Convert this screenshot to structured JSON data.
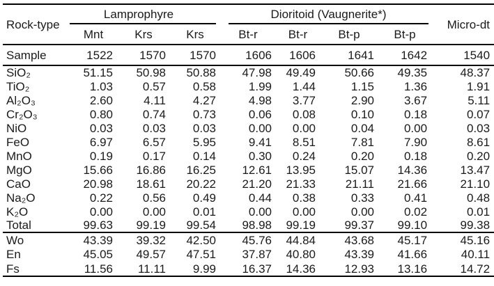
{
  "table": {
    "corner_label": "Rock-type",
    "groups": [
      "Lamprophyre",
      "Dioritoid (Vaugnerite*)"
    ],
    "micro_label": "Micro-dt",
    "subheaders": [
      "Mnt",
      "Krs",
      "Krs",
      "Bt-r",
      "Bt-r",
      "Bt-p",
      "Bt-p"
    ],
    "sample_label": "Sample",
    "samples": [
      "1522",
      "1570",
      "1570",
      "1606",
      "1606",
      "1641",
      "1642",
      "1540"
    ],
    "oxide_rows": [
      {
        "label": "SiO₂",
        "values": [
          "51.15",
          "50.98",
          "50.88",
          "47.98",
          "49.49",
          "50.66",
          "49.35",
          "48.37"
        ]
      },
      {
        "label": "TiO₂",
        "values": [
          "1.03",
          "0.57",
          "0.58",
          "1.99",
          "1.44",
          "1.15",
          "1.36",
          "1.91"
        ]
      },
      {
        "label": "Al₂O₃",
        "values": [
          "2.60",
          "4.11",
          "4.27",
          "4.98",
          "3.77",
          "2.90",
          "3.67",
          "5.11"
        ]
      },
      {
        "label": "Cr₂O₃",
        "values": [
          "0.80",
          "0.74",
          "0.73",
          "0.06",
          "0.08",
          "0.10",
          "0.18",
          "0.07"
        ]
      },
      {
        "label": "NiO",
        "values": [
          "0.03",
          "0.03",
          "0.03",
          "0.00",
          "0.00",
          "0.04",
          "0.00",
          "0.03"
        ]
      },
      {
        "label": "FeO",
        "values": [
          "6.97",
          "6.57",
          "5.95",
          "9.41",
          "8.51",
          "7.81",
          "7.90",
          "8.61"
        ]
      },
      {
        "label": "MnO",
        "values": [
          "0.19",
          "0.17",
          "0.14",
          "0.30",
          "0.24",
          "0.20",
          "0.18",
          "0.20"
        ]
      },
      {
        "label": "MgO",
        "values": [
          "15.66",
          "16.86",
          "16.25",
          "12.61",
          "13.95",
          "15.07",
          "14.36",
          "13.47"
        ]
      },
      {
        "label": "CaO",
        "values": [
          "20.98",
          "18.61",
          "20.22",
          "21.20",
          "21.33",
          "21.11",
          "21.66",
          "21.10"
        ]
      },
      {
        "label": "Na₂O",
        "values": [
          "0.22",
          "0.56",
          "0.49",
          "0.44",
          "0.38",
          "0.33",
          "0.41",
          "0.48"
        ]
      },
      {
        "label": "K₂O",
        "values": [
          "0.00",
          "0.00",
          "0.01",
          "0.00",
          "0.00",
          "0.00",
          "0.02",
          "0.01"
        ]
      },
      {
        "label": "Total",
        "values": [
          "99.63",
          "99.19",
          "99.54",
          "98.98",
          "99.19",
          "99.37",
          "99.10",
          "99.38"
        ]
      }
    ],
    "endmember_rows": [
      {
        "label": "Wo",
        "values": [
          "43.39",
          "39.32",
          "42.50",
          "45.76",
          "44.84",
          "43.68",
          "45.17",
          "45.16"
        ]
      },
      {
        "label": "En",
        "values": [
          "45.05",
          "49.57",
          "47.51",
          "37.87",
          "40.80",
          "43.39",
          "41.66",
          "40.11"
        ]
      },
      {
        "label": "Fs",
        "values": [
          "11.56",
          "11.11",
          "9.99",
          "16.37",
          "14.36",
          "12.93",
          "13.16",
          "14.72"
        ]
      }
    ]
  },
  "colors": {
    "text": "#1a1a1a",
    "rule": "#000000",
    "background": "#ffffff"
  }
}
